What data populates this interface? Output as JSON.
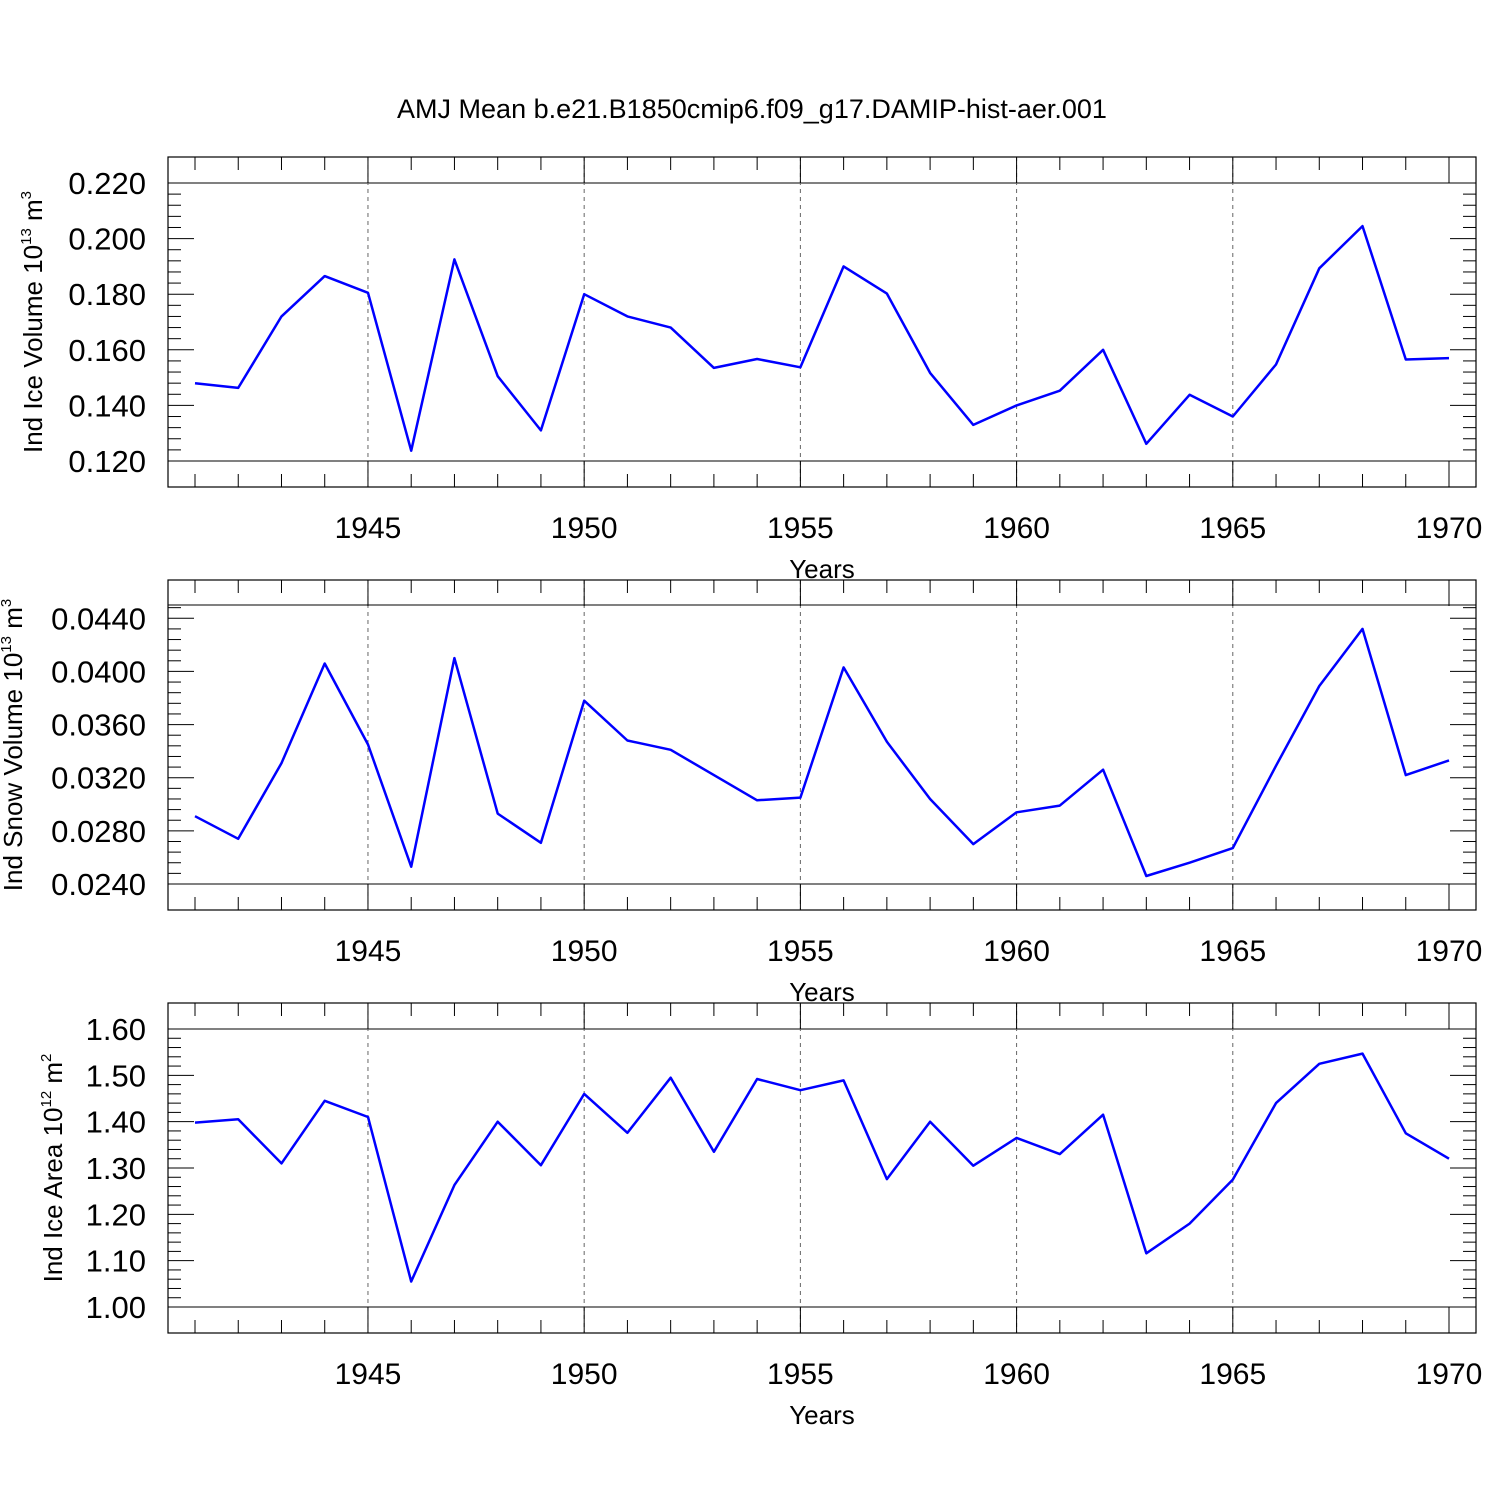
{
  "title": "AMJ Mean b.e21.B1850cmip6.f09_g17.DAMIP-hist-aer.001",
  "colors": {
    "series": "#0000ff",
    "axis": "#000000",
    "grid": "#666666"
  },
  "chart_data": [
    {
      "type": "line",
      "ylabel_main": "Ind Ice Volume 10",
      "ylabel_exp": "13",
      "ylabel_unit": "m",
      "ylabel_unit_exp": "3",
      "xlabel": "Years",
      "xlim": [
        1941,
        1970
      ],
      "ylim": [
        0.12,
        0.22
      ],
      "yticks": [
        0.12,
        0.14,
        0.16,
        0.18,
        0.2,
        0.22
      ],
      "ytick_labels": [
        "0.120",
        "0.140",
        "0.160",
        "0.180",
        "0.200",
        "0.220"
      ],
      "xticks": [
        1945,
        1950,
        1955,
        1960,
        1965,
        1970
      ],
      "xtick_labels": [
        "1945",
        "1950",
        "1955",
        "1960",
        "1965",
        "1970"
      ],
      "grid_x": true,
      "x": [
        1941,
        1942,
        1943,
        1944,
        1945,
        1946,
        1947,
        1948,
        1949,
        1950,
        1951,
        1952,
        1953,
        1954,
        1955,
        1956,
        1957,
        1958,
        1959,
        1960,
        1961,
        1962,
        1963,
        1964,
        1965,
        1966,
        1967,
        1968,
        1969,
        1970
      ],
      "series": [
        {
          "name": "Ind Ice Volume",
          "values": [
            0.148,
            0.1463,
            0.172,
            0.1865,
            0.1805,
            0.1237,
            0.1925,
            0.1505,
            0.131,
            0.18,
            0.172,
            0.168,
            0.1535,
            0.1567,
            0.1537,
            0.19,
            0.1802,
            0.1517,
            0.133,
            0.14,
            0.1453,
            0.16,
            0.1262,
            0.1438,
            0.136,
            0.1547,
            0.1893,
            0.2045,
            0.1565,
            0.157
          ]
        }
      ]
    },
    {
      "type": "line",
      "ylabel_main": "Ind Snow Volume 10",
      "ylabel_exp": "13",
      "ylabel_unit": "m",
      "ylabel_unit_exp": "3",
      "xlabel": "Years",
      "xlim": [
        1941,
        1970
      ],
      "ylim": [
        0.024,
        0.045
      ],
      "yticks": [
        0.024,
        0.028,
        0.032,
        0.036,
        0.04,
        0.044
      ],
      "ytick_labels": [
        "0.0240",
        "0.0280",
        "0.0320",
        "0.0360",
        "0.0400",
        "0.0440"
      ],
      "xticks": [
        1945,
        1950,
        1955,
        1960,
        1965,
        1970
      ],
      "xtick_labels": [
        "1945",
        "1950",
        "1955",
        "1960",
        "1965",
        "1970"
      ],
      "grid_x": true,
      "x": [
        1941,
        1942,
        1943,
        1944,
        1945,
        1946,
        1947,
        1948,
        1949,
        1950,
        1951,
        1952,
        1953,
        1954,
        1955,
        1956,
        1957,
        1958,
        1959,
        1960,
        1961,
        1962,
        1963,
        1964,
        1965,
        1966,
        1967,
        1968,
        1969,
        1970
      ],
      "series": [
        {
          "name": "Ind Snow Volume",
          "values": [
            0.0291,
            0.0274,
            0.0331,
            0.0406,
            0.0345,
            0.0253,
            0.041,
            0.0293,
            0.0271,
            0.0378,
            0.0348,
            0.0341,
            0.0322,
            0.0303,
            0.0305,
            0.0403,
            0.0347,
            0.0304,
            0.027,
            0.0294,
            0.0299,
            0.0326,
            0.0246,
            0.0256,
            0.0267,
            0.0329,
            0.0389,
            0.0432,
            0.0322,
            0.0333
          ]
        }
      ]
    },
    {
      "type": "line",
      "ylabel_main": "Ind Ice Area 10",
      "ylabel_exp": "12",
      "ylabel_unit": "m",
      "ylabel_unit_exp": "2",
      "xlabel": "Years",
      "xlim": [
        1941,
        1970
      ],
      "ylim": [
        1.0,
        1.6
      ],
      "yticks": [
        1.0,
        1.1,
        1.2,
        1.3,
        1.4,
        1.5,
        1.6
      ],
      "ytick_labels": [
        "1.00",
        "1.10",
        "1.20",
        "1.30",
        "1.40",
        "1.50",
        "1.60"
      ],
      "xticks": [
        1945,
        1950,
        1955,
        1960,
        1965,
        1970
      ],
      "xtick_labels": [
        "1945",
        "1950",
        "1955",
        "1960",
        "1965",
        "1970"
      ],
      "grid_x": true,
      "x": [
        1941,
        1942,
        1943,
        1944,
        1945,
        1946,
        1947,
        1948,
        1949,
        1950,
        1951,
        1952,
        1953,
        1954,
        1955,
        1956,
        1957,
        1958,
        1959,
        1960,
        1961,
        1962,
        1963,
        1964,
        1965,
        1966,
        1967,
        1968,
        1969,
        1970
      ],
      "series": [
        {
          "name": "Ind Ice Area",
          "values": [
            1.398,
            1.405,
            1.31,
            1.445,
            1.41,
            1.055,
            1.263,
            1.4,
            1.306,
            1.46,
            1.376,
            1.495,
            1.335,
            1.492,
            1.468,
            1.489,
            1.276,
            1.4,
            1.305,
            1.365,
            1.33,
            1.415,
            1.116,
            1.18,
            1.275,
            1.44,
            1.525,
            1.547,
            1.375,
            1.32
          ]
        }
      ]
    }
  ]
}
